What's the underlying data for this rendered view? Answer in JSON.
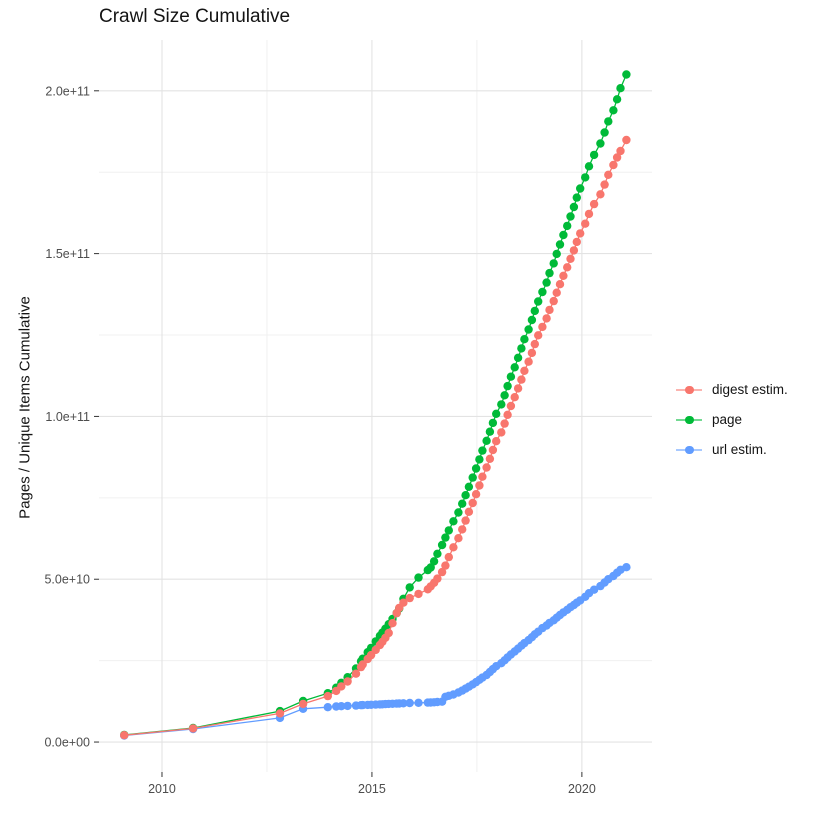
{
  "title": "Crawl Size Cumulative",
  "y_axis_title": "Pages / Unique Items Cumulative",
  "legend": {
    "items": [
      {
        "label": "digest estim.",
        "color": "#F8766D"
      },
      {
        "label": "page",
        "color": "#00BA38"
      },
      {
        "label": "url estim.",
        "color": "#619CFF"
      }
    ]
  },
  "colors": {
    "digest": "#F8766D",
    "page": "#00BA38",
    "url": "#619CFF",
    "grid_major": "#E3E3E3",
    "grid_minor": "#F0F0F0",
    "axis_text": "#4D4D4D",
    "tick": "#333333"
  },
  "chart_data": {
    "type": "scatter",
    "title": "Crawl Size Cumulative",
    "xlabel": "",
    "ylabel": "Pages / Unique Items Cumulative",
    "values_unit": "1e9 (billions) of pages / unique items",
    "grid": "on",
    "legend_position": "right",
    "xlim": [
      2008.5,
      2021.67
    ],
    "ylim_e9": [
      -9.2,
      215.6
    ],
    "x_ticks": {
      "major": [
        2010,
        2015,
        2020
      ],
      "minor": [
        2012.5,
        2017.5
      ],
      "labels": [
        "2010",
        "2015",
        "2020"
      ]
    },
    "y_ticks": {
      "major_e9": [
        0,
        50,
        100,
        150,
        200
      ],
      "minor_e9": [
        25,
        75,
        125,
        175
      ],
      "labels": [
        "0.0e+00",
        "5.0e+10",
        "1.0e+11",
        "1.5e+11",
        "2.0e+11"
      ]
    },
    "x_years": [
      2009.1,
      2010.74,
      2012.81,
      2013.36,
      2013.95,
      2014.15,
      2014.27,
      2014.42,
      2014.62,
      2014.74,
      2014.78,
      2014.9,
      2014.98,
      2015.09,
      2015.19,
      2015.25,
      2015.32,
      2015.4,
      2015.49,
      2015.59,
      2015.65,
      2015.75,
      2015.9,
      2016.11,
      2016.33,
      2016.4,
      2016.48,
      2016.56,
      2016.67,
      2016.75,
      2016.83,
      2016.94,
      2017.06,
      2017.15,
      2017.23,
      2017.31,
      2017.4,
      2017.48,
      2017.56,
      2017.63,
      2017.73,
      2017.81,
      2017.88,
      2017.96,
      2018.08,
      2018.16,
      2018.23,
      2018.31,
      2018.4,
      2018.48,
      2018.56,
      2018.63,
      2018.73,
      2018.81,
      2018.88,
      2018.96,
      2019.06,
      2019.16,
      2019.23,
      2019.33,
      2019.4,
      2019.48,
      2019.56,
      2019.65,
      2019.73,
      2019.81,
      2019.88,
      2019.96,
      2020.08,
      2020.17,
      2020.29,
      2020.44,
      2020.54,
      2020.63,
      2020.75,
      2020.84,
      2020.92,
      2021.06
    ],
    "series": [
      {
        "name": "page",
        "color": "#00BA38",
        "values_e9": [
          2.2,
          4.3,
          9.5,
          12.6,
          15.0,
          16.7,
          18.2,
          19.9,
          22.6,
          24.8,
          25.6,
          27.6,
          28.9,
          30.9,
          32.6,
          33.6,
          34.8,
          36.2,
          37.8,
          39.6,
          41.0,
          44.0,
          47.5,
          50.5,
          52.8,
          53.6,
          55.5,
          57.8,
          60.5,
          62.8,
          65.0,
          67.8,
          70.5,
          73.2,
          75.8,
          78.4,
          81.2,
          84.0,
          86.8,
          89.5,
          92.5,
          95.3,
          98.0,
          100.8,
          103.7,
          106.5,
          109.3,
          112.2,
          115.1,
          118.0,
          120.9,
          123.7,
          126.7,
          129.6,
          132.4,
          135.3,
          138.2,
          141.1,
          144.0,
          147.0,
          149.9,
          152.8,
          155.7,
          158.5,
          161.4,
          164.3,
          167.2,
          170.0,
          173.4,
          176.8,
          180.3,
          183.8,
          187.2,
          190.6,
          194.0,
          197.4,
          200.8,
          205.0
        ]
      },
      {
        "name": "url estim.",
        "color": "#619CFF",
        "values_e9": [
          2.0,
          4.0,
          7.4,
          10.2,
          10.7,
          10.9,
          11.0,
          11.1,
          11.2,
          11.3,
          11.35,
          11.4,
          11.45,
          11.5,
          11.55,
          11.6,
          11.65,
          11.7,
          11.75,
          11.8,
          11.85,
          11.9,
          12.0,
          12.05,
          12.1,
          12.15,
          12.2,
          12.3,
          12.4,
          13.9,
          14.2,
          14.6,
          15.2,
          15.8,
          16.4,
          17.0,
          17.7,
          18.4,
          19.1,
          19.8,
          20.6,
          21.5,
          22.4,
          23.3,
          24.2,
          25.1,
          26.0,
          26.9,
          27.8,
          28.7,
          29.6,
          30.4,
          31.3,
          32.2,
          33.1,
          33.9,
          35.0,
          35.8,
          36.6,
          37.4,
          38.2,
          39.0,
          39.8,
          40.6,
          41.4,
          42.1,
          42.8,
          43.5,
          44.6,
          45.7,
          46.8,
          47.9,
          49.0,
          50.0,
          51.0,
          52.0,
          52.9,
          53.7
        ]
      },
      {
        "name": "digest estim.",
        "color": "#F8766D",
        "values_e9": [
          2.1,
          4.2,
          8.8,
          11.7,
          14.1,
          15.7,
          17.1,
          18.6,
          21.0,
          23.0,
          23.8,
          25.5,
          26.7,
          28.3,
          29.8,
          30.8,
          32.0,
          33.5,
          36.5,
          39.6,
          41.2,
          42.8,
          44.2,
          45.5,
          46.9,
          47.8,
          48.9,
          50.2,
          52.2,
          54.2,
          56.8,
          59.8,
          62.6,
          65.3,
          68.0,
          70.7,
          73.4,
          76.1,
          78.8,
          81.5,
          84.3,
          87.0,
          89.7,
          92.4,
          95.1,
          97.8,
          100.5,
          103.2,
          105.9,
          108.6,
          111.3,
          114.0,
          116.8,
          119.5,
          122.2,
          124.9,
          127.5,
          130.1,
          132.7,
          135.4,
          138.0,
          140.6,
          143.2,
          145.8,
          148.4,
          151.0,
          153.6,
          156.2,
          159.2,
          162.2,
          165.2,
          168.2,
          171.2,
          174.2,
          177.2,
          179.5,
          181.5,
          184.9
        ]
      }
    ]
  }
}
